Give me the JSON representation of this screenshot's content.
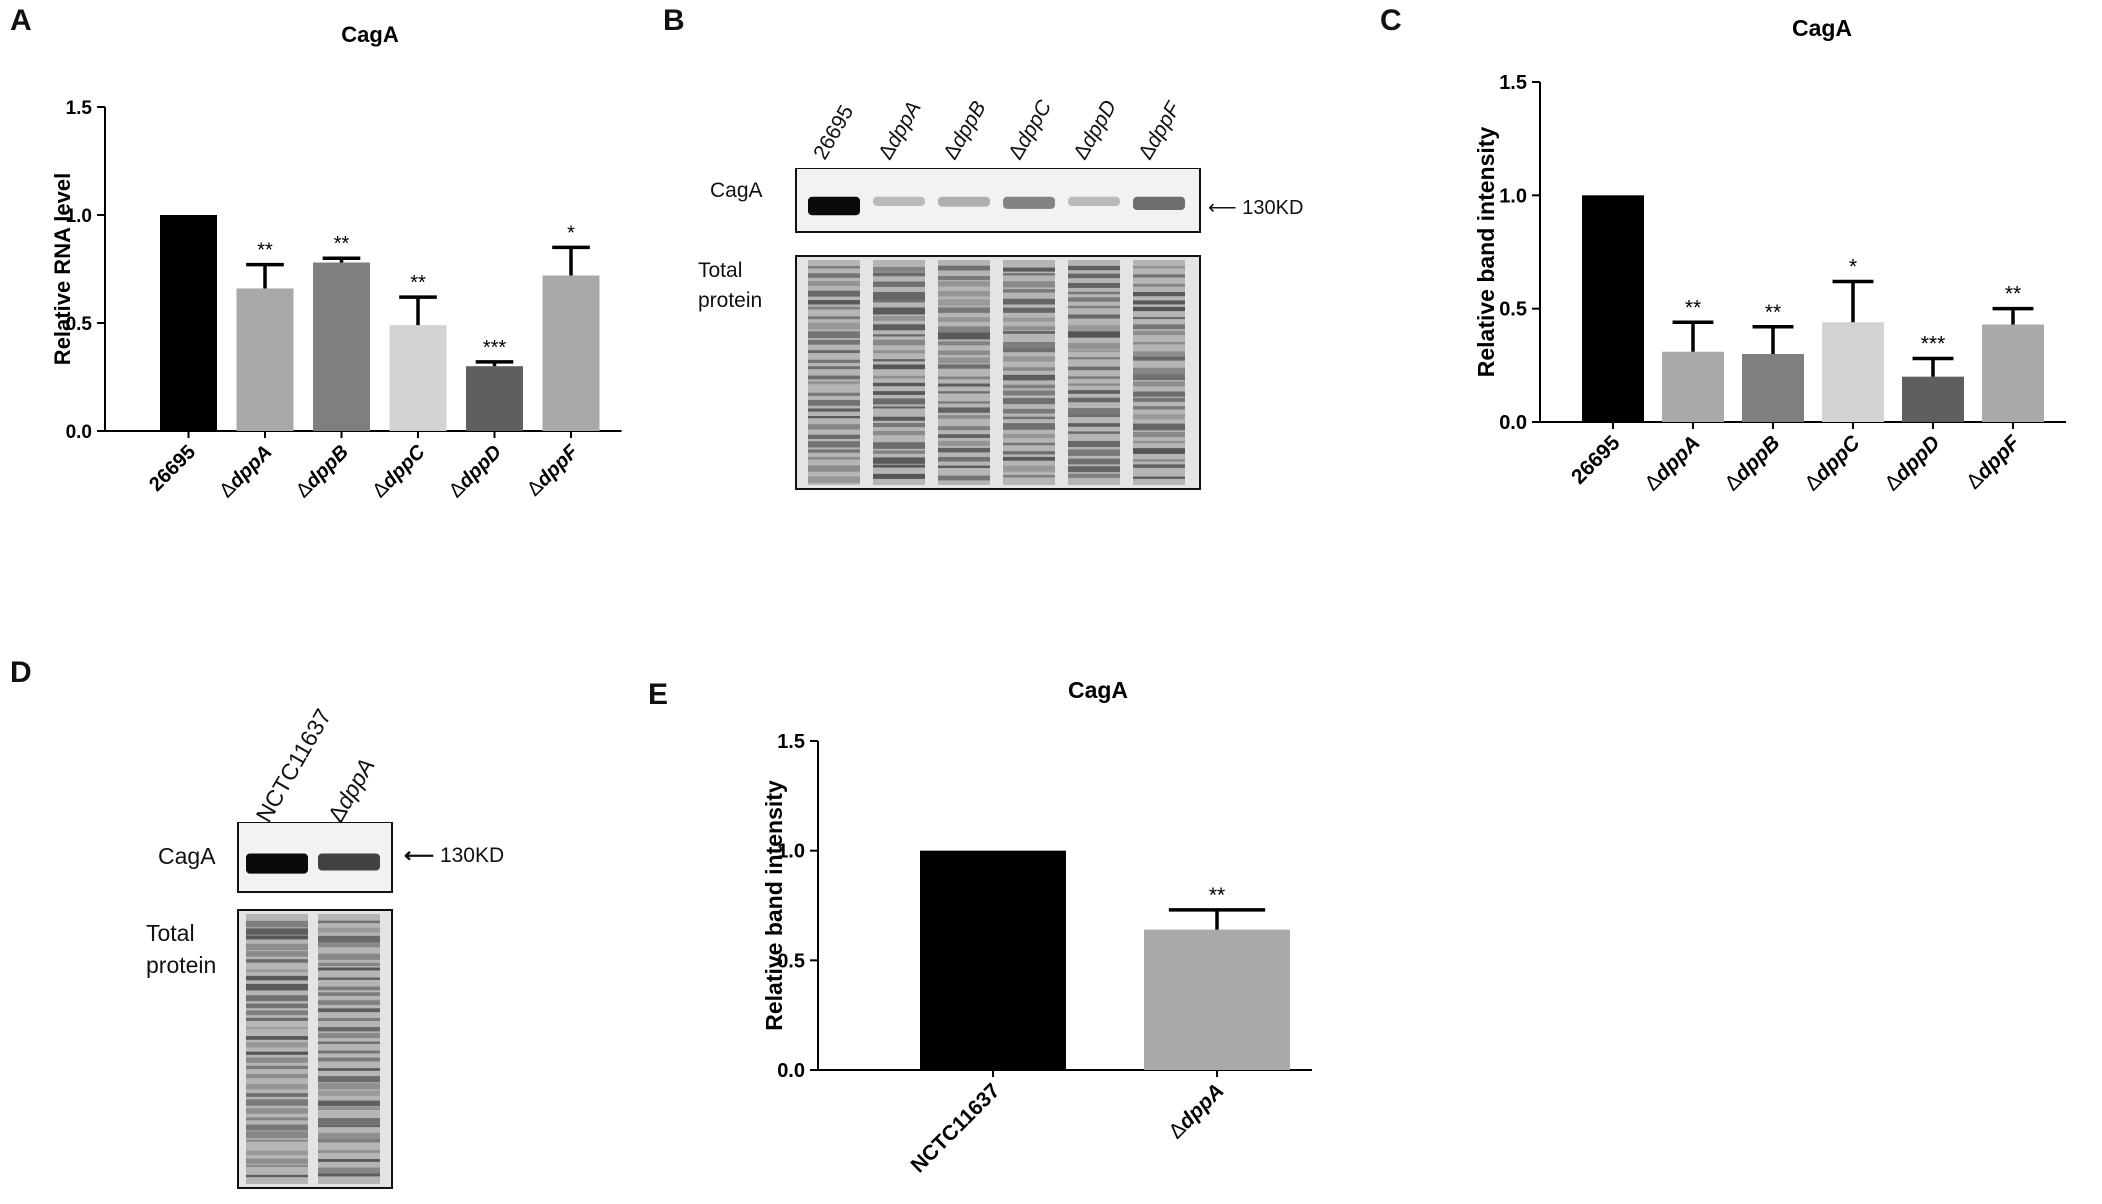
{
  "panels": {
    "A": {
      "letter": "A"
    },
    "B": {
      "letter": "B"
    },
    "C": {
      "letter": "C"
    },
    "D": {
      "letter": "D"
    },
    "E": {
      "letter": "E"
    }
  },
  "blot_b": {
    "lanes": [
      "26695",
      "ΔdppA",
      "ΔdppB",
      "ΔdppC",
      "ΔdppD",
      "ΔdppF"
    ],
    "cag_label": "CagA",
    "marker": "130KD",
    "total_label_1": "Total",
    "total_label_2": "protein",
    "band_intensity": [
      1.0,
      0.2,
      0.25,
      0.45,
      0.2,
      0.55
    ]
  },
  "blot_d": {
    "lanes": [
      "NCTC11637",
      "ΔdppA"
    ],
    "cag_label": "CagA",
    "marker": "130KD",
    "total_label_1": "Total",
    "total_label_2": "protein",
    "band_intensity": [
      1.0,
      0.75
    ]
  },
  "colors": {
    "black": "#000000",
    "light_gray": "#a9a9ab",
    "mid_gray": "#7f7f7f",
    "pale_gray": "#d3d3d3",
    "dark_gray": "#5f5f5f"
  },
  "chart_data": [
    {
      "id": "A",
      "type": "bar",
      "title": "CagA",
      "ylabel": "Relative RNA level",
      "ylim": [
        0,
        1.5
      ],
      "yticks": [
        "0.0",
        "0.5",
        "1.0",
        "1.5"
      ],
      "categories": [
        "26695",
        "ΔdppA",
        "ΔdppB",
        "ΔdppC",
        "ΔdppD",
        "ΔdppF"
      ],
      "values": [
        1.0,
        0.66,
        0.78,
        0.49,
        0.3,
        0.72
      ],
      "errors": [
        0,
        0.11,
        0.02,
        0.13,
        0.02,
        0.13
      ],
      "significance": [
        "",
        "**",
        "**",
        "**",
        "***",
        "*"
      ],
      "colors": [
        "#000000",
        "#a9a9ab",
        "#7f7f7f",
        "#d3d3d3",
        "#5f5f5f",
        "#a9a9ab"
      ]
    },
    {
      "id": "C",
      "type": "bar",
      "title": "CagA",
      "ylabel": "Relative band  intensity",
      "ylim": [
        0,
        1.5
      ],
      "yticks": [
        "0.0",
        "0.5",
        "1.0",
        "1.5"
      ],
      "categories": [
        "26695",
        "ΔdppA",
        "ΔdppB",
        "ΔdppC",
        "ΔdppD",
        "ΔdppF"
      ],
      "values": [
        1.0,
        0.31,
        0.3,
        0.44,
        0.2,
        0.43
      ],
      "errors": [
        0,
        0.13,
        0.12,
        0.18,
        0.08,
        0.07
      ],
      "significance": [
        "",
        "**",
        "**",
        "*",
        "***",
        "**"
      ],
      "colors": [
        "#000000",
        "#a9a9ab",
        "#7f7f7f",
        "#d3d3d3",
        "#5f5f5f",
        "#a9a9ab"
      ]
    },
    {
      "id": "E",
      "type": "bar",
      "title": "CagA",
      "ylabel": "Relative band  intensity",
      "ylim": [
        0,
        1.5
      ],
      "yticks": [
        "0.0",
        "0.5",
        "1.0",
        "1.5"
      ],
      "categories": [
        "NCTC11637",
        "ΔdppA"
      ],
      "values": [
        1.0,
        0.64
      ],
      "errors": [
        0,
        0.09
      ],
      "significance": [
        "",
        "**"
      ],
      "colors": [
        "#000000",
        "#a9a9ab"
      ]
    }
  ]
}
